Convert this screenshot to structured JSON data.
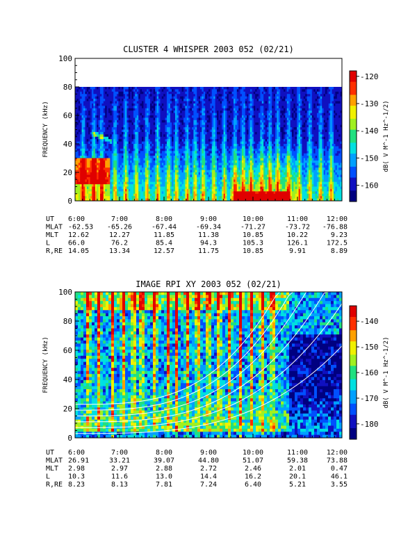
{
  "chart_data": [
    {
      "type": "heatmap",
      "title": "CLUSTER 4 WHISPER 2003 052 (02/21)",
      "ylabel": "FREQUENCY (kHz)",
      "colorbar_label": "dB( V M^-1 Hz^-1/2)",
      "ylim": [
        0,
        100
      ],
      "xlim": [
        "6:00",
        "12:00"
      ],
      "yticks": [
        0,
        20,
        40,
        60,
        80,
        100
      ],
      "x_ticks": [
        "6:00",
        "7:00",
        "8:00",
        "9:00",
        "10:00",
        "11:00",
        "12:00"
      ],
      "data_top_khz": 80,
      "colorbar_range": [
        -166,
        -118
      ],
      "colorbar_ticks": [
        -120,
        -130,
        -140,
        -150,
        -160
      ],
      "ephemeris": {
        "labels": [
          "UT",
          "MLAT",
          "MLT",
          "L",
          "R,RE"
        ],
        "rows": [
          [
            "6:00",
            "7:00",
            "8:00",
            "9:00",
            "10:00",
            "11:00",
            "12:00"
          ],
          [
            "-62.53",
            "-65.26",
            "-67.44",
            "-69.34",
            "-71.27",
            "-73.72",
            "-76.88"
          ],
          [
            "12.62",
            "12.27",
            "11.85",
            "11.38",
            "10.85",
            "10.22",
            "9.23"
          ],
          [
            "66.0",
            "76.2",
            "85.4",
            "94.3",
            "105.3",
            "126.1",
            "172.5"
          ],
          [
            "14.05",
            "13.34",
            "12.57",
            "11.75",
            "10.85",
            "9.91",
            "8.89"
          ]
        ]
      }
    },
    {
      "type": "heatmap",
      "title": "IMAGE RPI XY 2003 052 (02/21)",
      "ylabel": "FREQUENCY (kHz)",
      "colorbar_label": "dB( V M^-1 Hz^-1/2)",
      "ylim": [
        0,
        100
      ],
      "xlim": [
        "6:00",
        "12:00"
      ],
      "yticks": [
        0,
        20,
        40,
        60,
        80,
        100
      ],
      "x_ticks": [
        "6:00",
        "7:00",
        "8:00",
        "9:00",
        "10:00",
        "11:00",
        "12:00"
      ],
      "colorbar_range": [
        -186,
        -134
      ],
      "colorbar_ticks": [
        -140,
        -150,
        -160,
        -170,
        -180
      ],
      "ephemeris": {
        "labels": [
          "UT",
          "MLAT",
          "MLT",
          "L",
          "R,RE"
        ],
        "rows": [
          [
            "6:00",
            "7:00",
            "8:00",
            "9:00",
            "10:00",
            "11:00",
            "12:00"
          ],
          [
            "26.91",
            "33.21",
            "39.07",
            "44.80",
            "51.07",
            "59.38",
            "73.88"
          ],
          [
            "2.98",
            "2.97",
            "2.88",
            "2.72",
            "2.46",
            "2.01",
            "0.47"
          ],
          [
            "10.3",
            "11.6",
            "13.0",
            "14.4",
            "16.2",
            "20.1",
            "46.1"
          ],
          [
            "8.23",
            "8.13",
            "7.81",
            "7.24",
            "6.40",
            "5.21",
            "3.55"
          ]
        ]
      }
    }
  ],
  "colors": {
    "colormap": [
      "#000080",
      "#1010c0",
      "#0050ff",
      "#00a0ff",
      "#00e0e0",
      "#20e080",
      "#a0f020",
      "#f0f000",
      "#ffa000",
      "#ff3000",
      "#e00000"
    ]
  }
}
